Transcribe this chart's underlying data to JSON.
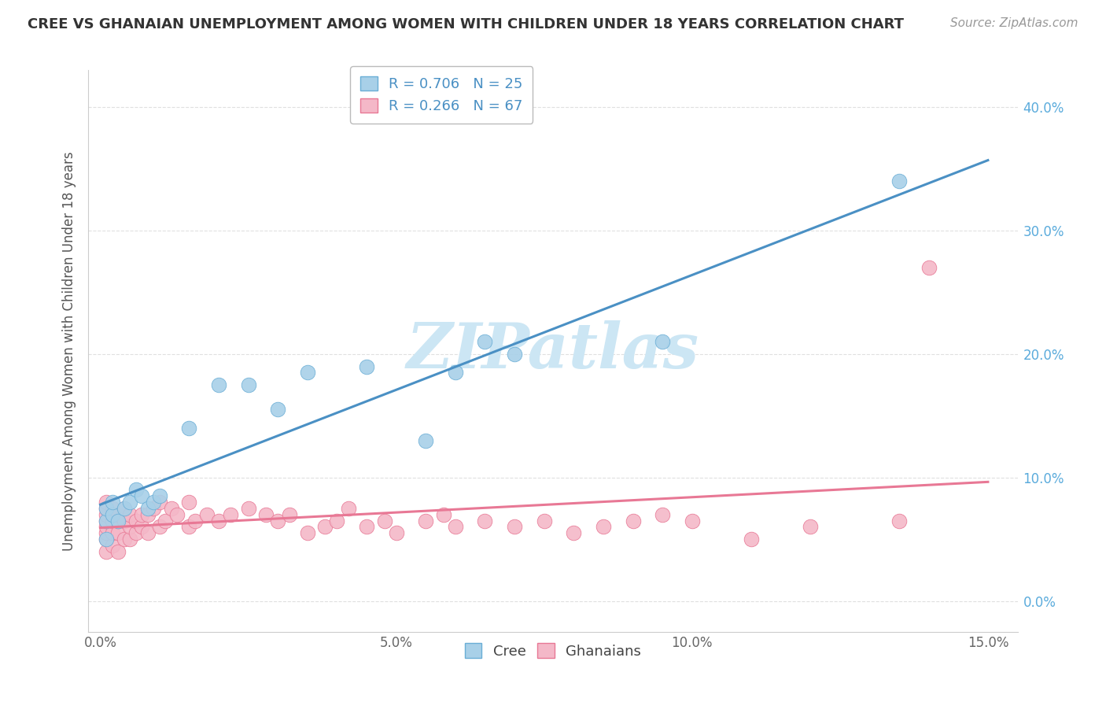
{
  "title": "CREE VS GHANAIAN UNEMPLOYMENT AMONG WOMEN WITH CHILDREN UNDER 18 YEARS CORRELATION CHART",
  "source": "Source: ZipAtlas.com",
  "ylabel": "Unemployment Among Women with Children Under 18 years",
  "xlim": [
    -0.002,
    0.155
  ],
  "ylim": [
    -0.025,
    0.43
  ],
  "xticks": [
    0.0,
    0.05,
    0.1,
    0.15
  ],
  "xtick_labels": [
    "0.0%",
    "5.0%",
    "10.0%",
    "15.0%"
  ],
  "yticks": [
    0.0,
    0.1,
    0.2,
    0.3,
    0.4
  ],
  "ytick_labels": [
    "0.0%",
    "10.0%",
    "20.0%",
    "30.0%",
    "40.0%"
  ],
  "right_ytick_labels": [
    "0.0%",
    "10.0%",
    "20.0%",
    "30.0%",
    "40.0%"
  ],
  "legend_cree": "R = 0.706   N = 25",
  "legend_ghana": "R = 0.266   N = 67",
  "cree_color": "#a8d0e8",
  "ghana_color": "#f4b8c8",
  "cree_edge_color": "#6aaed6",
  "ghana_edge_color": "#e87895",
  "cree_line_color": "#4a90c4",
  "ghana_line_color": "#e87895",
  "watermark": "ZIPatlas",
  "watermark_color": "#cce6f4",
  "cree_x": [
    0.001,
    0.001,
    0.001,
    0.002,
    0.002,
    0.003,
    0.004,
    0.005,
    0.006,
    0.007,
    0.008,
    0.009,
    0.01,
    0.015,
    0.02,
    0.025,
    0.03,
    0.035,
    0.045,
    0.055,
    0.06,
    0.065,
    0.07,
    0.095,
    0.135
  ],
  "cree_y": [
    0.05,
    0.065,
    0.075,
    0.07,
    0.08,
    0.065,
    0.075,
    0.08,
    0.09,
    0.085,
    0.075,
    0.08,
    0.085,
    0.14,
    0.175,
    0.175,
    0.155,
    0.185,
    0.19,
    0.13,
    0.185,
    0.21,
    0.2,
    0.21,
    0.34
  ],
  "ghana_x": [
    0.001,
    0.001,
    0.001,
    0.001,
    0.001,
    0.001,
    0.001,
    0.001,
    0.002,
    0.002,
    0.002,
    0.002,
    0.002,
    0.003,
    0.003,
    0.003,
    0.003,
    0.004,
    0.004,
    0.004,
    0.005,
    0.005,
    0.005,
    0.006,
    0.006,
    0.007,
    0.007,
    0.008,
    0.008,
    0.009,
    0.01,
    0.01,
    0.011,
    0.012,
    0.013,
    0.015,
    0.015,
    0.016,
    0.018,
    0.02,
    0.022,
    0.025,
    0.028,
    0.03,
    0.032,
    0.035,
    0.038,
    0.04,
    0.042,
    0.045,
    0.048,
    0.05,
    0.055,
    0.058,
    0.06,
    0.065,
    0.07,
    0.075,
    0.08,
    0.085,
    0.09,
    0.095,
    0.1,
    0.11,
    0.12,
    0.135,
    0.14
  ],
  "ghana_y": [
    0.04,
    0.05,
    0.055,
    0.06,
    0.065,
    0.07,
    0.075,
    0.08,
    0.045,
    0.055,
    0.065,
    0.07,
    0.075,
    0.04,
    0.055,
    0.065,
    0.07,
    0.05,
    0.065,
    0.075,
    0.05,
    0.06,
    0.07,
    0.055,
    0.065,
    0.06,
    0.07,
    0.055,
    0.07,
    0.075,
    0.06,
    0.08,
    0.065,
    0.075,
    0.07,
    0.06,
    0.08,
    0.065,
    0.07,
    0.065,
    0.07,
    0.075,
    0.07,
    0.065,
    0.07,
    0.055,
    0.06,
    0.065,
    0.075,
    0.06,
    0.065,
    0.055,
    0.065,
    0.07,
    0.06,
    0.065,
    0.06,
    0.065,
    0.055,
    0.06,
    0.065,
    0.07,
    0.065,
    0.05,
    0.06,
    0.065,
    0.27
  ],
  "background_color": "#ffffff",
  "grid_color": "#e0e0e0"
}
